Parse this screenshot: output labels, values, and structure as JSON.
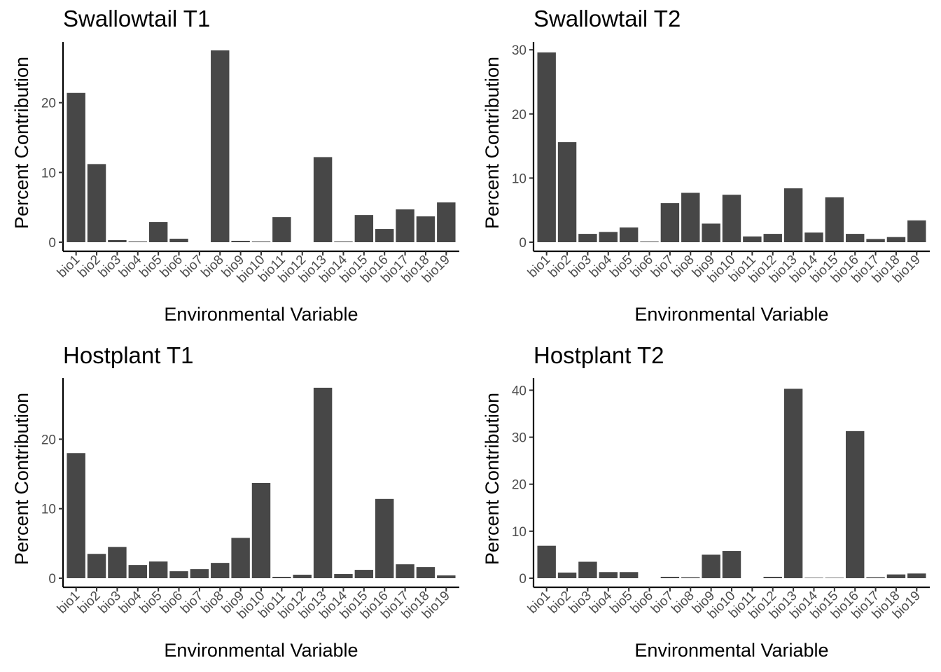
{
  "chart_data": [
    {
      "type": "bar",
      "title": "Swallowtail T1",
      "xlabel": "Environmental Variable",
      "ylabel": "Percent Contribution",
      "categories": [
        "bio1",
        "bio2",
        "bio3",
        "bio4",
        "bio5",
        "bio6",
        "bio7",
        "bio8",
        "bio9",
        "bio10",
        "bio11",
        "bio12",
        "bio13",
        "bio14",
        "bio15",
        "bio16",
        "bio17",
        "bio18",
        "bio19"
      ],
      "values": [
        21.4,
        11.2,
        0.3,
        0.1,
        2.9,
        0.5,
        0,
        27.5,
        0.2,
        0.1,
        3.6,
        0,
        12.2,
        0.1,
        3.9,
        1.9,
        4.7,
        3.7,
        5.7
      ],
      "yticks": [
        0,
        10,
        20
      ],
      "ylim": [
        0,
        28.5
      ],
      "grid": false,
      "color": "#474747"
    },
    {
      "type": "bar",
      "title": "Swallowtail T2",
      "xlabel": "Environmental Variable",
      "ylabel": "Percent Contribution",
      "categories": [
        "bio1",
        "bio2",
        "bio3",
        "bio4",
        "bio5",
        "bio6",
        "bio7",
        "bio8",
        "bio9",
        "bio10",
        "bio11",
        "bio12",
        "bio13",
        "bio14",
        "bio15",
        "bio16",
        "bio17",
        "bio18",
        "bio19"
      ],
      "values": [
        29.6,
        15.6,
        1.3,
        1.6,
        2.3,
        0.1,
        6.1,
        7.7,
        2.9,
        7.4,
        0.9,
        1.3,
        8.4,
        1.5,
        7.0,
        1.3,
        0.5,
        0.8,
        3.4
      ],
      "yticks": [
        0,
        10,
        20,
        30
      ],
      "ylim": [
        0,
        31
      ],
      "grid": false,
      "color": "#474747"
    },
    {
      "type": "bar",
      "title": "Hostplant T1",
      "xlabel": "Environmental Variable",
      "ylabel": "Percent Contribution",
      "categories": [
        "bio1",
        "bio2",
        "bio3",
        "bio4",
        "bio5",
        "bio6",
        "bio7",
        "bio8",
        "bio9",
        "bio10",
        "bio11",
        "bio12",
        "bio13",
        "bio14",
        "bio15",
        "bio16",
        "bio17",
        "bio18",
        "bio19"
      ],
      "values": [
        18.0,
        3.5,
        4.5,
        1.9,
        2.4,
        1.0,
        1.3,
        2.2,
        5.8,
        13.7,
        0.2,
        0.5,
        27.4,
        0.6,
        1.2,
        11.4,
        2.0,
        1.6,
        0.4
      ],
      "yticks": [
        0,
        10,
        20
      ],
      "ylim": [
        0,
        28.6
      ],
      "grid": false,
      "color": "#474747"
    },
    {
      "type": "bar",
      "title": "Hostplant T2",
      "xlabel": "Environmental Variable",
      "ylabel": "Percent Contribution",
      "categories": [
        "bio1",
        "bio2",
        "bio3",
        "bio4",
        "bio5",
        "bio6",
        "bio7",
        "bio8",
        "bio9",
        "bio10",
        "bio11",
        "bio12",
        "bio13",
        "bio14",
        "bio15",
        "bio16",
        "bio17",
        "bio18",
        "bio19"
      ],
      "values": [
        6.9,
        1.2,
        3.5,
        1.3,
        1.3,
        0,
        0.3,
        0.2,
        5.0,
        5.8,
        0,
        0.3,
        40.3,
        0.1,
        0.1,
        31.3,
        0.2,
        0.8,
        1.0
      ],
      "yticks": [
        0,
        10,
        20,
        30,
        40
      ],
      "ylim": [
        0,
        42.3
      ],
      "grid": false,
      "color": "#474747"
    }
  ]
}
